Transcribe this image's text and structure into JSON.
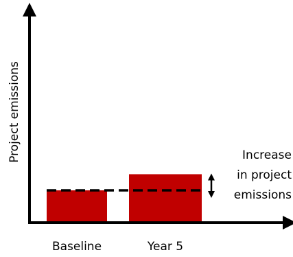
{
  "chart_data": {
    "type": "bar",
    "categories": [
      "Baseline",
      "Year 5"
    ],
    "values": [
      1.0,
      1.5
    ],
    "xlabel": "",
    "ylabel": "Project emissions",
    "ylim": [
      0,
      6.0
    ],
    "grid": false,
    "bar_color": "#c00000",
    "reference_line": {
      "style": "dashed",
      "value": 1.0
    },
    "annotation": {
      "lines": [
        "Increase",
        "in project",
        "emissions"
      ]
    }
  }
}
